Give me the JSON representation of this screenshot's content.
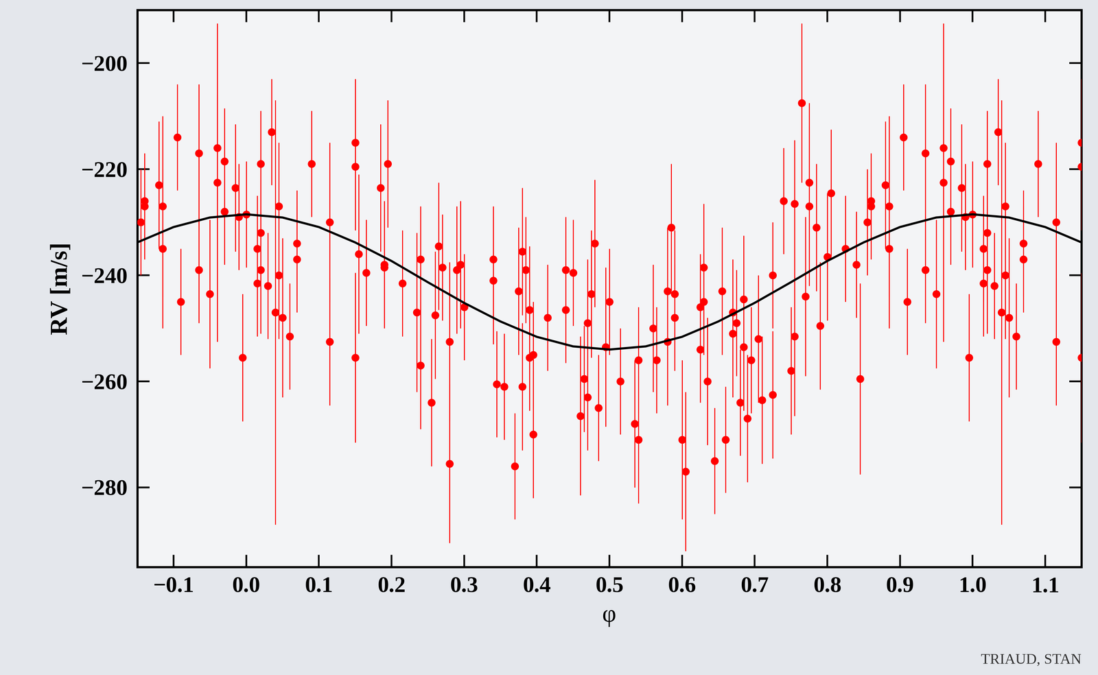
{
  "chart_data": {
    "type": "scatter",
    "x_label": "φ",
    "y_label": "RV [m/s]",
    "annotations": [
      "TRIAUD, STAN"
    ],
    "xlim": [
      -0.15,
      1.15
    ],
    "ylim": [
      -295,
      -190
    ],
    "xticks": [
      {
        "value": -0.1,
        "label": "−0.1"
      },
      {
        "value": 0.0,
        "label": "0.0"
      },
      {
        "value": 0.1,
        "label": "0.1"
      },
      {
        "value": 0.2,
        "label": "0.2"
      },
      {
        "value": 0.3,
        "label": "0.3"
      },
      {
        "value": 0.4,
        "label": "0.4"
      },
      {
        "value": 0.5,
        "label": "0.5"
      },
      {
        "value": 0.6,
        "label": "0.6"
      },
      {
        "value": 0.7,
        "label": "0.7"
      },
      {
        "value": 0.8,
        "label": "0.8"
      },
      {
        "value": 0.9,
        "label": "0.9"
      },
      {
        "value": 1.0,
        "label": "1.0"
      },
      {
        "value": 1.1,
        "label": "1.1"
      }
    ],
    "yticks": [
      {
        "value": -280,
        "label": "−280"
      },
      {
        "value": -260,
        "label": "−260"
      },
      {
        "value": -240,
        "label": "−240"
      },
      {
        "value": -220,
        "label": "−220"
      },
      {
        "value": -200,
        "label": "−200"
      }
    ],
    "grid": false,
    "series": [
      {
        "type": "scatter",
        "color": "#ff0000",
        "marker": "o",
        "x": [
          -0.145,
          -0.14,
          -0.14,
          -0.12,
          -0.115,
          -0.115,
          -0.095,
          -0.09,
          -0.065,
          -0.065,
          -0.05,
          -0.04,
          -0.04,
          -0.03,
          -0.03,
          -0.015,
          -0.01,
          -0.005,
          0.0,
          0.015,
          0.015,
          0.02,
          0.02,
          0.02,
          0.03,
          0.035,
          0.04,
          0.045,
          0.045,
          0.05,
          0.06,
          0.07,
          0.07,
          0.09,
          0.115,
          0.115,
          0.15,
          0.15,
          0.15,
          0.155,
          0.165,
          0.185,
          0.19,
          0.19,
          0.195,
          0.215,
          0.235,
          0.24,
          0.24,
          0.255,
          0.26,
          0.265,
          0.27,
          0.28,
          0.28,
          0.29,
          0.295,
          0.3,
          0.34,
          0.34,
          0.345,
          0.355,
          0.37,
          0.375,
          0.38,
          0.38,
          0.385,
          0.39,
          0.39,
          0.395,
          0.395,
          0.415,
          0.44,
          0.44,
          0.45,
          0.46,
          0.465,
          0.47,
          0.47,
          0.475,
          0.48,
          0.485,
          0.495,
          0.5,
          0.515,
          0.535,
          0.54,
          0.54,
          0.56,
          0.565,
          0.58,
          0.58,
          0.585,
          0.59,
          0.59,
          0.6,
          0.605,
          0.625,
          0.625,
          0.63,
          0.63,
          0.635,
          0.645,
          0.655,
          0.66,
          0.67,
          0.67,
          0.675,
          0.68,
          0.685,
          0.685,
          0.69,
          0.695,
          0.705,
          0.71,
          0.725,
          0.725,
          0.74,
          0.75,
          0.755,
          0.755,
          0.765,
          0.77,
          0.775,
          0.775,
          0.785,
          0.79,
          0.8,
          0.805,
          0.825,
          0.84,
          0.845,
          0.855,
          0.86,
          0.86,
          0.88,
          0.885,
          0.885,
          0.905,
          0.91,
          0.935,
          0.935,
          0.95,
          0.96,
          0.96,
          0.97,
          0.97,
          0.985,
          0.99,
          0.995,
          1.0,
          1.015,
          1.015,
          1.02,
          1.02,
          1.02,
          1.03,
          1.035,
          1.04,
          1.045,
          1.045,
          1.05,
          1.06,
          1.07,
          1.07,
          1.09,
          1.115,
          1.115,
          1.15,
          1.15,
          1.15
        ],
        "values": [
          -230,
          -226,
          -227,
          -223,
          -227,
          -235,
          -214,
          -245,
          -217,
          -239,
          -243.5,
          -216,
          -222.5,
          -228,
          -218.5,
          -223.5,
          -229,
          -255.5,
          -228.5,
          -235,
          -241.5,
          -239,
          -232,
          -219,
          -242,
          -213,
          -247,
          -227,
          -240,
          -248,
          -251.5,
          -234,
          -237,
          -219,
          -230,
          -252.5,
          -215,
          -219.5,
          -255.5,
          -236,
          -239.5,
          -223.5,
          -238,
          -238.5,
          -219,
          -241.5,
          -247,
          -237,
          -257,
          -264,
          -247.5,
          -234.5,
          -238.5,
          -275.5,
          -252.5,
          -239,
          -238,
          -246,
          -237,
          -241,
          -260.5,
          -261,
          -276,
          -243,
          -235.5,
          -261,
          -239,
          -246.5,
          -255.5,
          -255,
          -270,
          -248,
          -239,
          -246.5,
          -239.5,
          -266.5,
          -259.5,
          -249,
          -263,
          -243.5,
          -234,
          -265,
          -253.5,
          -245,
          -260,
          -268,
          -271,
          -256,
          -250,
          -256,
          -243,
          -252.5,
          -231,
          -243.5,
          -248,
          -271,
          -277,
          -246,
          -254,
          -238.5,
          -245,
          -260,
          -275,
          -243,
          -271,
          -247,
          -251,
          -249,
          -264,
          -253.5,
          -244.5,
          -267,
          -256,
          -252,
          -263.5,
          -262.5,
          -240,
          -226,
          -258,
          -226.5,
          -251.5,
          -207.5,
          -244,
          -222.5,
          -227,
          -231,
          -249.5,
          -236.5,
          -224.5,
          -235,
          -238,
          -259.5,
          -230,
          -226,
          -227,
          -223,
          -227,
          -235,
          -214,
          -245,
          -217,
          -239,
          -243.5,
          -216,
          -222.5,
          -228,
          -218.5,
          -223.5,
          -229,
          -255.5,
          -228.5,
          -235,
          -241.5,
          -239,
          -232,
          -219,
          -242,
          -213,
          -247,
          -227,
          -240,
          -248,
          -251.5,
          -234,
          -237,
          -219,
          -230,
          -252.5,
          -215,
          -219.5,
          -255.5
        ],
        "errors": [
          10,
          8,
          10,
          12,
          17,
          15,
          10,
          10,
          13,
          10,
          14,
          10,
          30,
          10,
          10,
          12,
          10,
          12,
          10,
          10,
          10,
          12,
          10,
          10,
          10,
          10,
          40,
          12,
          12,
          15,
          10,
          10,
          10,
          10,
          15,
          12,
          12,
          12,
          16,
          15,
          10,
          12,
          12,
          10,
          12,
          10,
          15,
          10,
          12,
          12,
          12,
          12,
          10,
          15,
          15,
          12,
          12,
          10,
          10,
          12,
          10,
          10,
          10,
          12,
          12,
          12,
          10,
          12,
          10,
          10,
          12,
          10,
          10,
          10,
          10,
          15,
          10,
          12,
          10,
          12,
          12,
          10,
          15,
          10,
          10,
          12,
          12,
          10,
          12,
          10,
          12,
          12,
          12,
          12,
          10,
          15,
          15,
          10,
          10,
          12,
          10,
          12,
          10,
          12,
          10,
          10,
          12,
          10,
          10,
          12,
          12,
          12,
          10,
          12,
          12,
          12,
          10,
          10,
          12,
          12,
          15,
          15,
          15,
          15,
          15,
          12,
          12,
          12,
          12,
          10,
          10,
          18,
          10,
          8,
          10,
          12,
          17,
          15,
          10,
          10,
          13,
          10,
          14,
          10,
          30,
          10,
          10,
          12,
          10,
          12,
          10,
          10,
          10,
          12,
          10,
          10,
          10,
          10,
          40,
          12,
          12,
          15,
          10,
          10,
          10,
          10,
          15,
          12,
          12,
          12,
          16
        ]
      },
      {
        "type": "line",
        "color": "#000000",
        "line_style": "solid",
        "x": [
          -0.15,
          -0.1,
          -0.05,
          0.0,
          0.05,
          0.1,
          0.15,
          0.2,
          0.25,
          0.3,
          0.35,
          0.4,
          0.45,
          0.5,
          0.55,
          0.6,
          0.65,
          0.7,
          0.75,
          0.8,
          0.85,
          0.9,
          0.95,
          1.0,
          1.05,
          1.1,
          1.15
        ],
        "values": [
          -233.8,
          -230.9,
          -229.1,
          -228.5,
          -229.1,
          -230.9,
          -233.8,
          -237.3,
          -241.3,
          -245.2,
          -248.7,
          -251.6,
          -253.4,
          -254.0,
          -253.4,
          -251.6,
          -248.7,
          -245.2,
          -241.3,
          -237.3,
          -233.8,
          -230.9,
          -229.1,
          -228.5,
          -229.1,
          -230.9,
          -233.8
        ]
      }
    ]
  }
}
